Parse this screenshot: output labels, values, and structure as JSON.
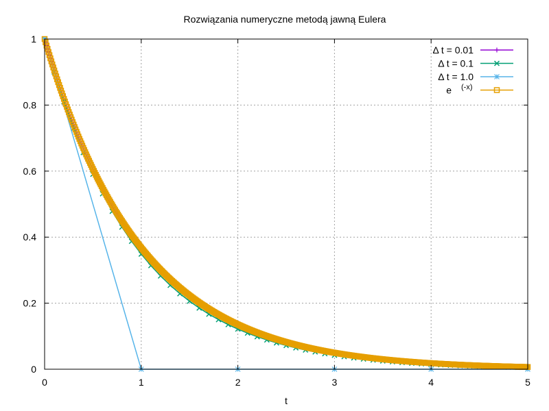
{
  "chart_data": {
    "type": "line",
    "title": "Rozwiązania numeryczne metodą jawną Eulera",
    "xlabel": "t",
    "ylabel": "",
    "xlim": [
      0,
      5
    ],
    "ylim": [
      0,
      1
    ],
    "x_ticks": [
      "0",
      "1",
      "2",
      "3",
      "4",
      "5"
    ],
    "y_ticks": [
      "0",
      "0.2",
      "0.4",
      "0.6",
      "0.8",
      "1"
    ],
    "grid": true,
    "legend_position": "top-right",
    "series": [
      {
        "name": "Δ t = 0.01",
        "legend_main": "Δ t = 0.01",
        "color": "#9400d3",
        "marker": "plus",
        "formula": "(1-dt)^n",
        "dt": 0.01,
        "t_end": 5
      },
      {
        "name": "Δ t = 0.1",
        "legend_main": "Δ t = 0.1",
        "color": "#009e73",
        "marker": "cross",
        "formula": "(1-dt)^n",
        "dt": 0.1,
        "t_end": 5
      },
      {
        "name": "Δ t = 1.0",
        "legend_main": "Δ t = 1.0",
        "color": "#56b4e9",
        "marker": "star",
        "x": [
          0,
          1,
          2,
          3,
          4,
          5
        ],
        "values": [
          1,
          0,
          0,
          0,
          0,
          0
        ]
      },
      {
        "name": "e^(-x)",
        "legend_main": "e",
        "legend_sup": "(-x)",
        "color": "#e69f00",
        "marker": "square",
        "formula": "exp(-t)",
        "dt": 0.01,
        "t_end": 5
      }
    ]
  }
}
